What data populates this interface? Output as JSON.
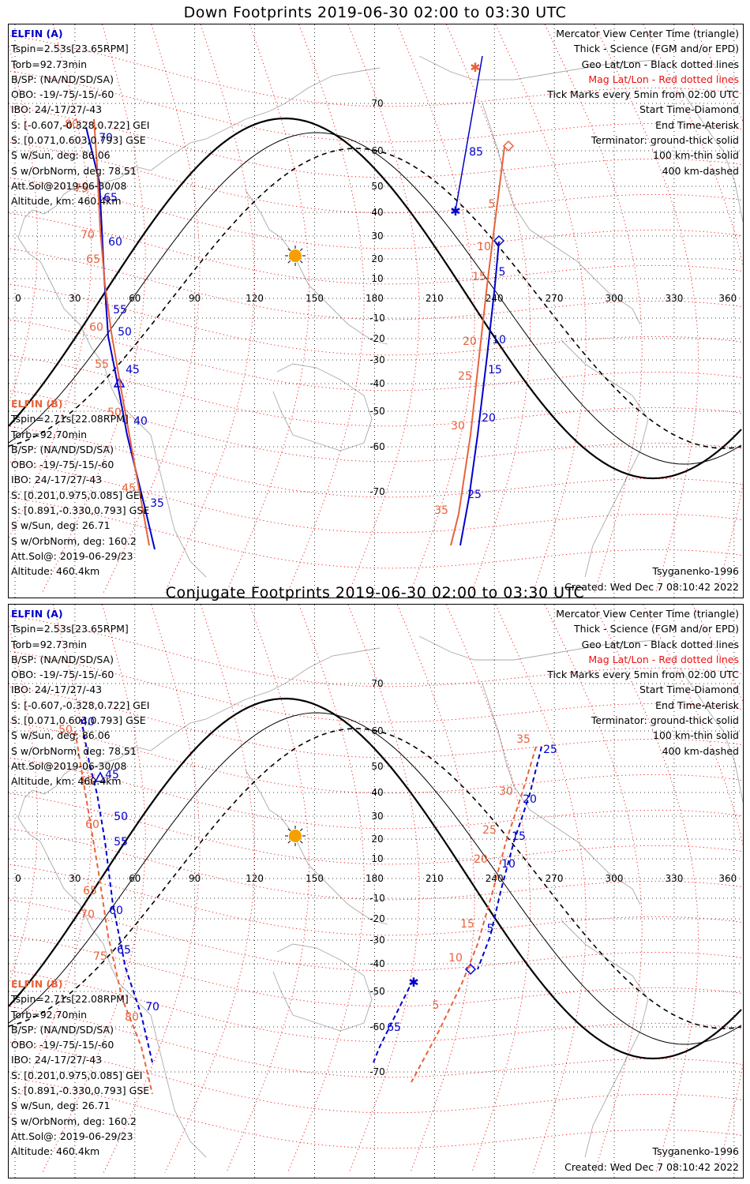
{
  "panels": [
    {
      "title": "Down Footprints 2019-06-30 02:00 to 03:30 UTC",
      "elfin_a": {
        "name": "ELFIN (A)",
        "lines": [
          "Tspin=2.53s[23.65RPM]",
          "Torb=92.73min",
          "B/SP: (NA/ND/SD/SA)",
          "OBO: -19/-75/-15/-60",
          "IBO: 24/-17/27/-43",
          "S: [-0.607,-0.328,0.722] GEI",
          "S: [0.071,0.603,0.793] GSE",
          "S w/Sun, deg: 86.06",
          "S w/OrbNorm, deg: 78.51",
          "Att.Sol@2019-06-30/08",
          "Altitude, km: 460.4km"
        ]
      },
      "elfin_b": {
        "name": "ELFIN (B)",
        "lines": [
          "Tspin=2.71s[22.08RPM]",
          "Torb=92.70min",
          "B/SP: (NA/ND/SD/SA)",
          "OBO: -19/-75/-15/-60",
          "IBO: 24/-17/27/-43",
          "S: [0.201,0.975,0.085] GEI",
          "S: [0.891,-0.330,0.793] GSE",
          "S w/Sun, deg: 26.71",
          "S w/OrbNorm, deg: 160.2",
          "Att.Sol@: 2019-06-29/23",
          "Altitude: 460.4km"
        ]
      },
      "legend": [
        "Mercator View Center Time (triangle)",
        "Thick - Science (FGM and/or EPD)",
        "Geo Lat/Lon - Black dotted lines",
        "Mag Lat/Lon - Red dotted lines",
        "Tick Marks every 5min from 02:00 UTC",
        "Start Time-Diamond",
        "End Time-Aterisk",
        "Terminator: ground-thick solid",
        "100 km-thin solid",
        "400 km-dashed"
      ],
      "model": "Tsyganenko-1996",
      "created": "Created: Wed Dec  7 08:10:42 2022"
    },
    {
      "title": "Conjugate Footprints 2019-06-30 02:00 to 03:30 UTC",
      "elfin_a": {
        "name": "ELFIN (A)",
        "lines": [
          "Tspin=2.53s[23.65RPM]",
          "Torb=92.73min",
          "B/SP: (NA/ND/SD/SA)",
          "OBO: -19/-75/-15/-60",
          "IBO: 24/-17/27/-43",
          "S: [-0.607,-0.328,0.722] GEI",
          "S: [0.071,0.603,0.793] GSE",
          "S w/Sun, deg: 86.06",
          "S w/OrbNorm, deg: 78.51",
          "Att.Sol@2019-06-30/08",
          "Altitude, km: 460.4km"
        ]
      },
      "elfin_b": {
        "name": "ELFIN (B)",
        "lines": [
          "Tspin=2.71s[22.08RPM]",
          "Torb=92.70min",
          "B/SP: (NA/ND/SD/SA)",
          "OBO: -19/-75/-15/-60",
          "IBO: 24/-17/27/-43",
          "S: [0.201,0.975,0.085] GEI",
          "S: [0.891,-0.330,0.793] GSE",
          "S w/Sun, deg: 26.71",
          "S w/OrbNorm, deg: 160.2",
          "Att.Sol@: 2019-06-29/23",
          "Altitude: 460.4km"
        ]
      },
      "legend": [
        "Mercator View Center Time (triangle)",
        "Thick - Science (FGM and/or EPD)",
        "Geo Lat/Lon - Black dotted lines",
        "Mag Lat/Lon - Red dotted lines",
        "Tick Marks every 5min from 02:00 UTC",
        "Start Time-Diamond",
        "End Time-Aterisk",
        "Terminator: ground-thick solid",
        "100 km-thin solid",
        "400 km-dashed"
      ],
      "model": "Tsyganenko-1996",
      "created": "Created: Wed Dec  7 08:10:42 2022"
    }
  ],
  "map": {
    "lon_ticks": [
      "0",
      "30",
      "60",
      "90",
      "120",
      "150",
      "180",
      "210",
      "240",
      "270",
      "300",
      "330",
      "360"
    ],
    "lat_ticks": [
      "70",
      "60",
      "50",
      "40",
      "30",
      "20",
      "10",
      "-10",
      "-20",
      "-30",
      "-40",
      "-50",
      "-60",
      "-70"
    ],
    "colors": {
      "elfin_a": "#0000cc",
      "elfin_b": "#e8623c",
      "mag_grid": "#ee1111",
      "geo_grid": "#000000",
      "sun": "#f5a000",
      "coast": "#aaaaaa"
    }
  },
  "tracks": {
    "down": {
      "a_west": [
        "70",
        "65",
        "60",
        "55",
        "50",
        "45",
        "40",
        "35"
      ],
      "b_west": [
        "80",
        "75",
        "70",
        "65",
        "60",
        "55",
        "50",
        "45"
      ],
      "a_east": [
        "85",
        "5",
        "10",
        "15",
        "20",
        "25"
      ],
      "b_east": [
        "5",
        "10",
        "15",
        "20",
        "25",
        "30",
        "35"
      ]
    },
    "conj": {
      "a_west": [
        "40",
        "45",
        "50",
        "55",
        "60",
        "65",
        "70"
      ],
      "b_west": [
        "50",
        "55",
        "60",
        "65",
        "70",
        "75",
        "80"
      ],
      "a_east": [
        "25",
        "20",
        "15",
        "10",
        "5",
        "65"
      ],
      "b_east": [
        "35",
        "30",
        "25",
        "20",
        "15",
        "10",
        "5"
      ]
    }
  }
}
